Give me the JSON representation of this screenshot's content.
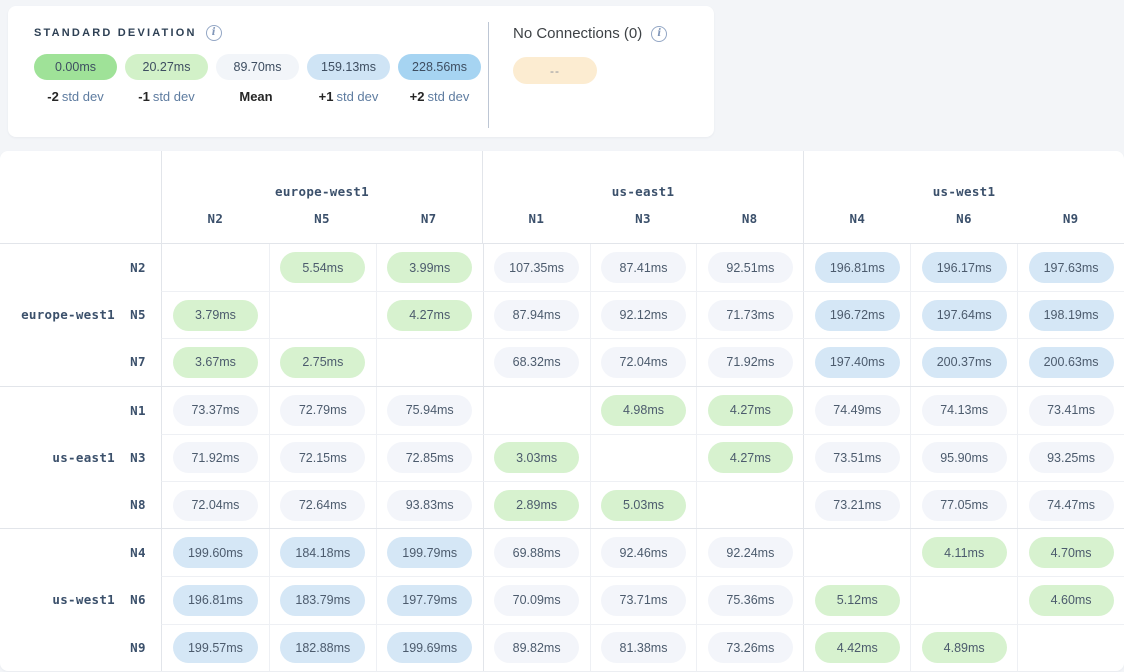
{
  "legend": {
    "title": "STANDARD DEVIATION",
    "items": [
      {
        "value": "0.00ms",
        "prefix": "-2",
        "suffix": "std dev",
        "color": "#9fe298"
      },
      {
        "value": "20.27ms",
        "prefix": "-1",
        "suffix": "std dev",
        "color": "#d2f1c8"
      },
      {
        "value": "89.70ms",
        "prefix": "Mean",
        "suffix": "",
        "color": "#f2f5f9"
      },
      {
        "value": "159.13ms",
        "prefix": "+1",
        "suffix": "std dev",
        "color": "#cfe4f5"
      },
      {
        "value": "228.56ms",
        "prefix": "+2",
        "suffix": "std dev",
        "color": "#a6d4f2"
      }
    ]
  },
  "no_connections": {
    "title": "No Connections (0)",
    "pill": "--",
    "color": "#fcecd1"
  },
  "colors": {
    "green": "#d7f2cf",
    "gray": "#f3f5fa",
    "blue": "#d5e7f6"
  },
  "matrix": {
    "col_groups": [
      {
        "region": "europe-west1",
        "nodes": [
          "N2",
          "N5",
          "N7"
        ]
      },
      {
        "region": "us-east1",
        "nodes": [
          "N1",
          "N3",
          "N8"
        ]
      },
      {
        "region": "us-west1",
        "nodes": [
          "N4",
          "N6",
          "N9"
        ]
      }
    ],
    "row_groups": [
      {
        "region": "europe-west1",
        "rows": [
          {
            "node": "N2",
            "cells": [
              {
                "v": "",
                "c": ""
              },
              {
                "v": "5.54ms",
                "c": "green"
              },
              {
                "v": "3.99ms",
                "c": "green"
              },
              {
                "v": "107.35ms",
                "c": "gray"
              },
              {
                "v": "87.41ms",
                "c": "gray"
              },
              {
                "v": "92.51ms",
                "c": "gray"
              },
              {
                "v": "196.81ms",
                "c": "blue"
              },
              {
                "v": "196.17ms",
                "c": "blue"
              },
              {
                "v": "197.63ms",
                "c": "blue"
              }
            ]
          },
          {
            "node": "N5",
            "cells": [
              {
                "v": "3.79ms",
                "c": "green"
              },
              {
                "v": "",
                "c": ""
              },
              {
                "v": "4.27ms",
                "c": "green"
              },
              {
                "v": "87.94ms",
                "c": "gray"
              },
              {
                "v": "92.12ms",
                "c": "gray"
              },
              {
                "v": "71.73ms",
                "c": "gray"
              },
              {
                "v": "196.72ms",
                "c": "blue"
              },
              {
                "v": "197.64ms",
                "c": "blue"
              },
              {
                "v": "198.19ms",
                "c": "blue"
              }
            ]
          },
          {
            "node": "N7",
            "cells": [
              {
                "v": "3.67ms",
                "c": "green"
              },
              {
                "v": "2.75ms",
                "c": "green"
              },
              {
                "v": "",
                "c": ""
              },
              {
                "v": "68.32ms",
                "c": "gray"
              },
              {
                "v": "72.04ms",
                "c": "gray"
              },
              {
                "v": "71.92ms",
                "c": "gray"
              },
              {
                "v": "197.40ms",
                "c": "blue"
              },
              {
                "v": "200.37ms",
                "c": "blue"
              },
              {
                "v": "200.63ms",
                "c": "blue"
              }
            ]
          }
        ]
      },
      {
        "region": "us-east1",
        "rows": [
          {
            "node": "N1",
            "cells": [
              {
                "v": "73.37ms",
                "c": "gray"
              },
              {
                "v": "72.79ms",
                "c": "gray"
              },
              {
                "v": "75.94ms",
                "c": "gray"
              },
              {
                "v": "",
                "c": ""
              },
              {
                "v": "4.98ms",
                "c": "green"
              },
              {
                "v": "4.27ms",
                "c": "green"
              },
              {
                "v": "74.49ms",
                "c": "gray"
              },
              {
                "v": "74.13ms",
                "c": "gray"
              },
              {
                "v": "73.41ms",
                "c": "gray"
              }
            ]
          },
          {
            "node": "N3",
            "cells": [
              {
                "v": "71.92ms",
                "c": "gray"
              },
              {
                "v": "72.15ms",
                "c": "gray"
              },
              {
                "v": "72.85ms",
                "c": "gray"
              },
              {
                "v": "3.03ms",
                "c": "green"
              },
              {
                "v": "",
                "c": ""
              },
              {
                "v": "4.27ms",
                "c": "green"
              },
              {
                "v": "73.51ms",
                "c": "gray"
              },
              {
                "v": "95.90ms",
                "c": "gray"
              },
              {
                "v": "93.25ms",
                "c": "gray"
              }
            ]
          },
          {
            "node": "N8",
            "cells": [
              {
                "v": "72.04ms",
                "c": "gray"
              },
              {
                "v": "72.64ms",
                "c": "gray"
              },
              {
                "v": "93.83ms",
                "c": "gray"
              },
              {
                "v": "2.89ms",
                "c": "green"
              },
              {
                "v": "5.03ms",
                "c": "green"
              },
              {
                "v": "",
                "c": ""
              },
              {
                "v": "73.21ms",
                "c": "gray"
              },
              {
                "v": "77.05ms",
                "c": "gray"
              },
              {
                "v": "74.47ms",
                "c": "gray"
              }
            ]
          }
        ]
      },
      {
        "region": "us-west1",
        "rows": [
          {
            "node": "N4",
            "cells": [
              {
                "v": "199.60ms",
                "c": "blue"
              },
              {
                "v": "184.18ms",
                "c": "blue"
              },
              {
                "v": "199.79ms",
                "c": "blue"
              },
              {
                "v": "69.88ms",
                "c": "gray"
              },
              {
                "v": "92.46ms",
                "c": "gray"
              },
              {
                "v": "92.24ms",
                "c": "gray"
              },
              {
                "v": "",
                "c": ""
              },
              {
                "v": "4.11ms",
                "c": "green"
              },
              {
                "v": "4.70ms",
                "c": "green"
              }
            ]
          },
          {
            "node": "N6",
            "cells": [
              {
                "v": "196.81ms",
                "c": "blue"
              },
              {
                "v": "183.79ms",
                "c": "blue"
              },
              {
                "v": "197.79ms",
                "c": "blue"
              },
              {
                "v": "70.09ms",
                "c": "gray"
              },
              {
                "v": "73.71ms",
                "c": "gray"
              },
              {
                "v": "75.36ms",
                "c": "gray"
              },
              {
                "v": "5.12ms",
                "c": "green"
              },
              {
                "v": "",
                "c": ""
              },
              {
                "v": "4.60ms",
                "c": "green"
              }
            ]
          },
          {
            "node": "N9",
            "cells": [
              {
                "v": "199.57ms",
                "c": "blue"
              },
              {
                "v": "182.88ms",
                "c": "blue"
              },
              {
                "v": "199.69ms",
                "c": "blue"
              },
              {
                "v": "89.82ms",
                "c": "gray"
              },
              {
                "v": "81.38ms",
                "c": "gray"
              },
              {
                "v": "73.26ms",
                "c": "gray"
              },
              {
                "v": "4.42ms",
                "c": "green"
              },
              {
                "v": "4.89ms",
                "c": "green"
              },
              {
                "v": "",
                "c": ""
              }
            ]
          }
        ]
      }
    ]
  }
}
